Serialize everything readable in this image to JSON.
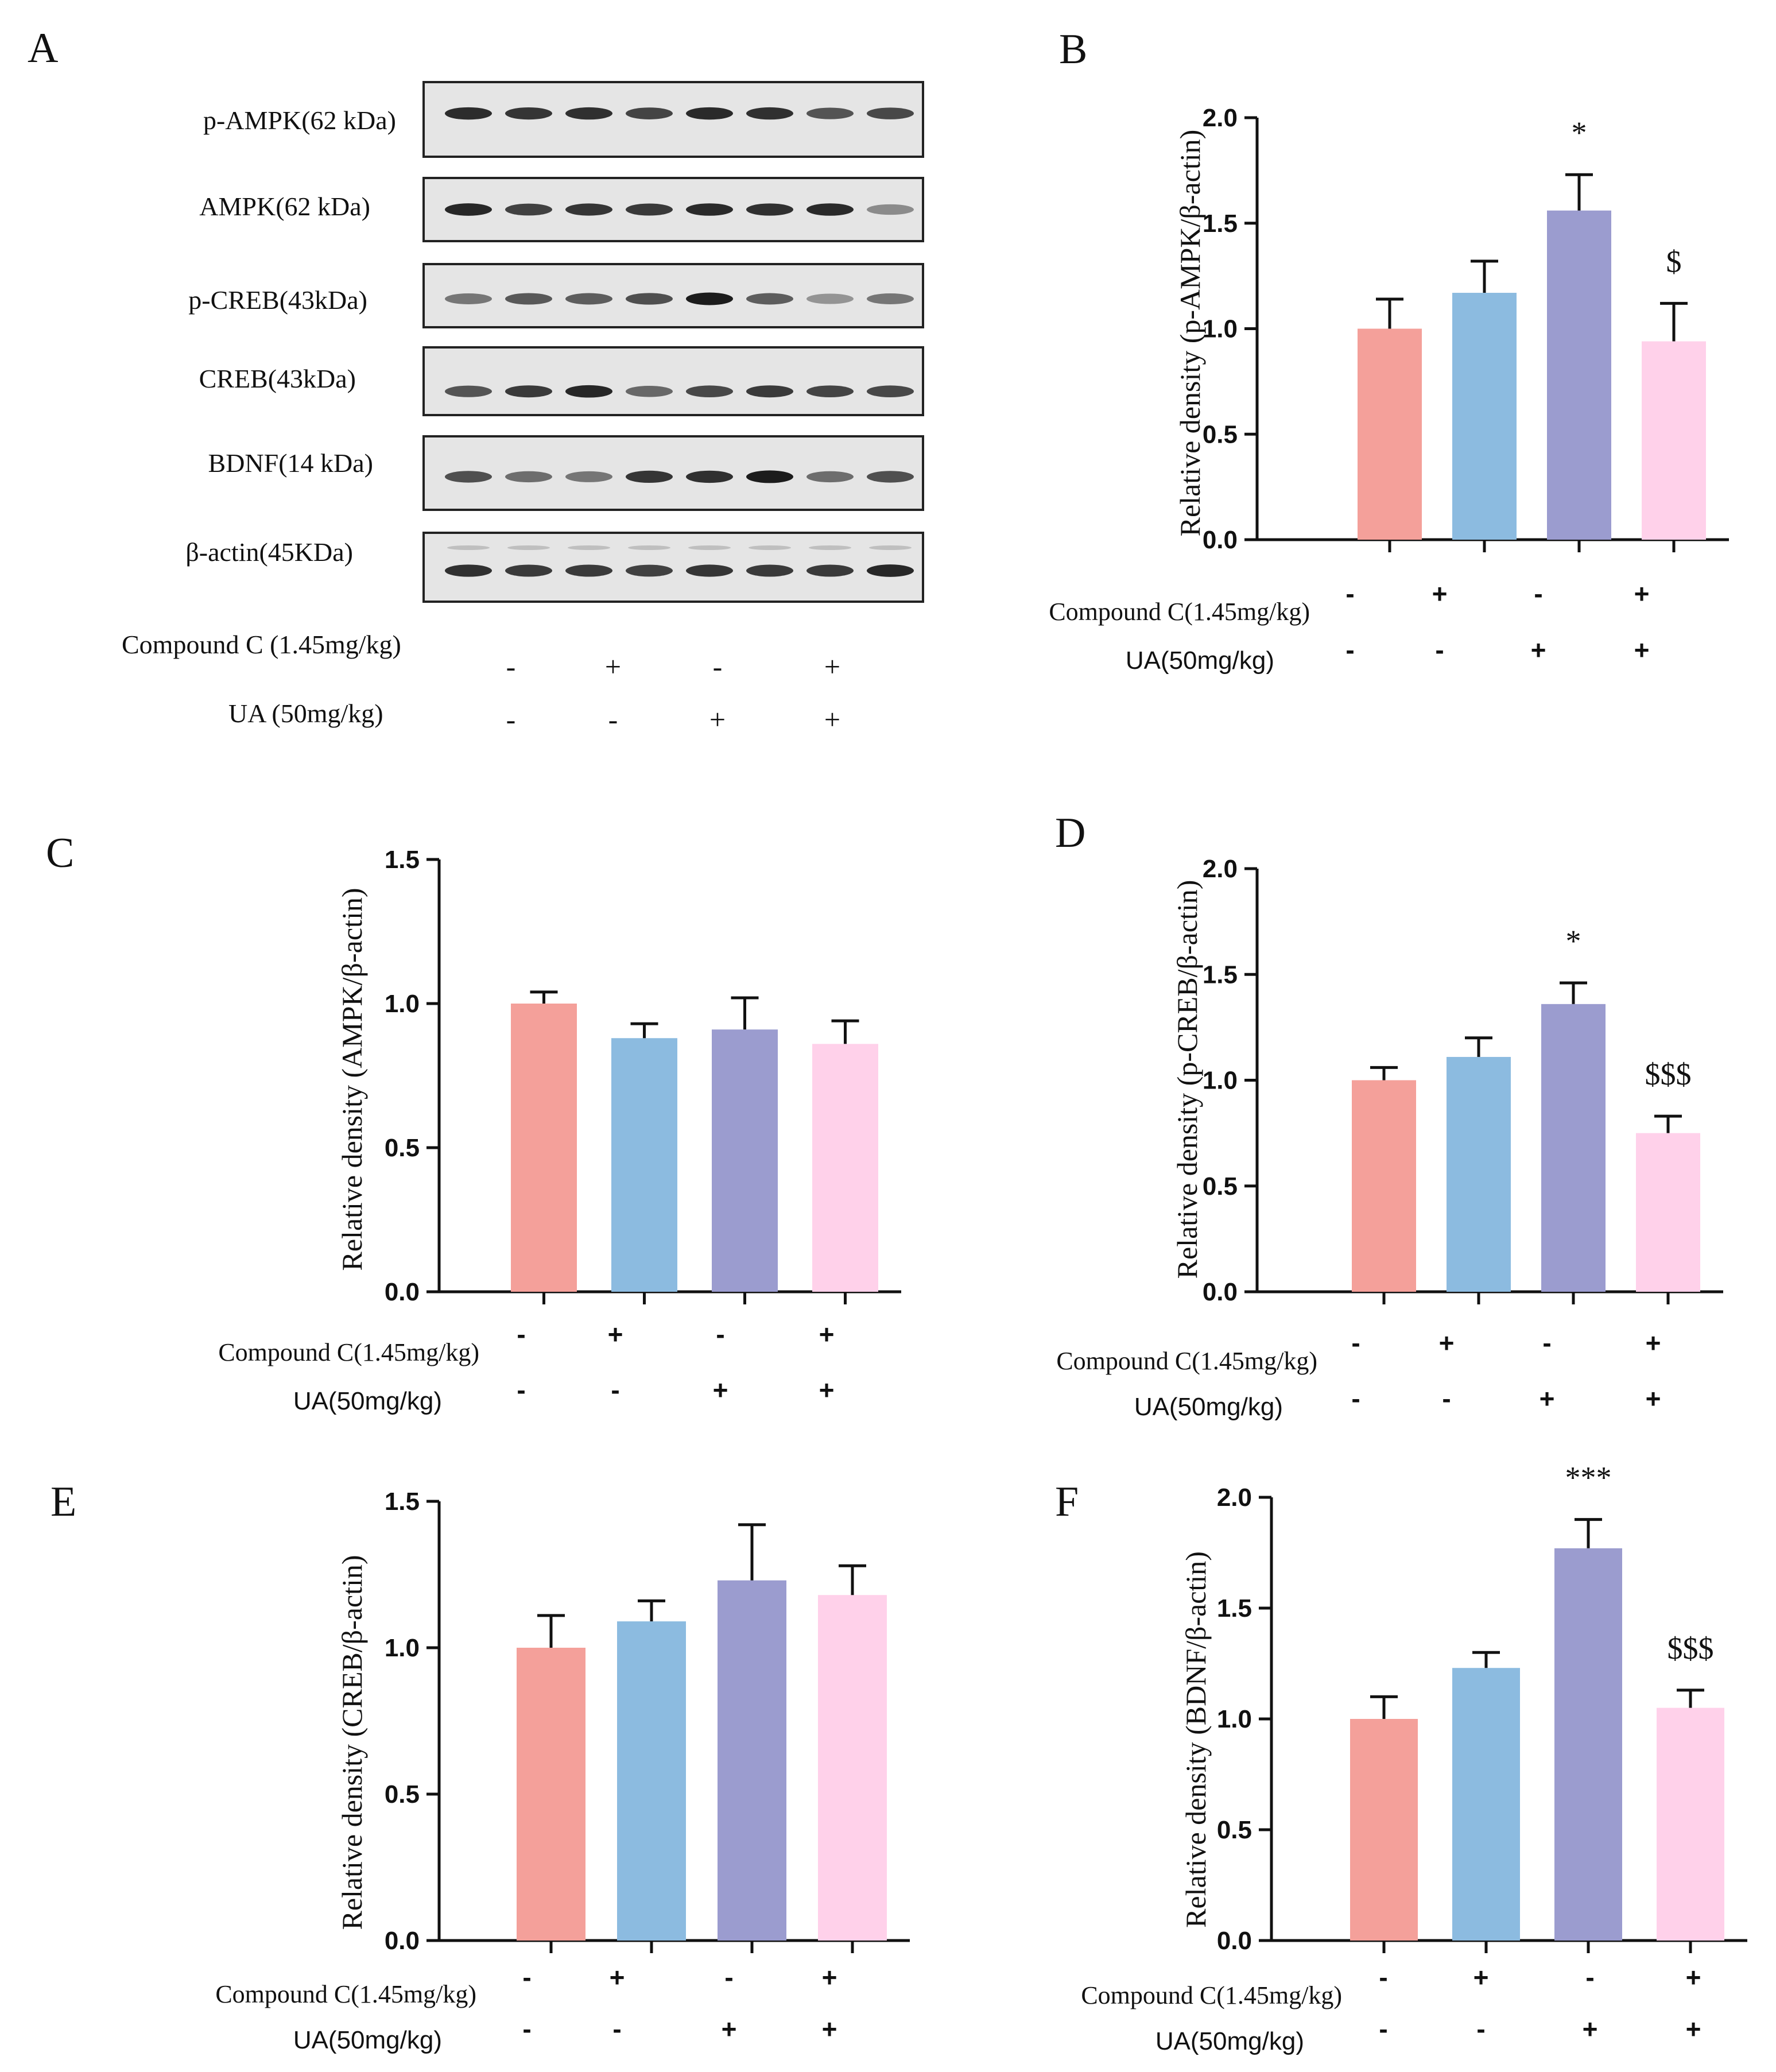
{
  "colors": {
    "bars": [
      "#f4a09a",
      "#8cbbe0",
      "#9b9ccf",
      "#ffd1ea"
    ],
    "axis": "#111111",
    "blot_bg": "#e5e5e5",
    "band": "#1c1c1c"
  },
  "blot": {
    "panel_letter": "A",
    "proteins": [
      "p-AMPK(62 kDa)",
      "AMPK(62 kDa)",
      "p-CREB(43kDa)",
      "CREB(43kDa)",
      "BDNF(14 kDa)",
      "β-actin(45KDa)"
    ],
    "band_intensity": [
      [
        0.92,
        0.88,
        0.9,
        0.8,
        0.93,
        0.9,
        0.72,
        0.78
      ],
      [
        0.95,
        0.82,
        0.88,
        0.86,
        0.93,
        0.9,
        0.93,
        0.45
      ],
      [
        0.55,
        0.7,
        0.68,
        0.75,
        1.0,
        0.68,
        0.4,
        0.55
      ],
      [
        0.72,
        0.85,
        0.95,
        0.62,
        0.78,
        0.85,
        0.8,
        0.78
      ],
      [
        0.75,
        0.6,
        0.55,
        0.88,
        0.9,
        1.0,
        0.6,
        0.75
      ],
      [
        0.9,
        0.85,
        0.85,
        0.82,
        0.88,
        0.85,
        0.85,
        0.95
      ]
    ],
    "condition_labels": [
      "Compound C (1.45mg/kg)",
      "UA (50mg/kg)"
    ],
    "condition_signs": [
      [
        "-",
        "+",
        "-",
        "+"
      ],
      [
        "-",
        "-",
        "+",
        "+"
      ]
    ]
  },
  "chart_data": [
    {
      "panel": "B",
      "type": "bar",
      "ylabel": "Relative density (p-AMPK/β-actin)",
      "ylim": [
        0,
        2.0
      ],
      "yticks": [
        "0.0",
        "0.5",
        "1.0",
        "1.5",
        "2.0"
      ],
      "values": [
        1.0,
        1.17,
        1.56,
        0.94
      ],
      "errors": [
        0.14,
        0.15,
        0.17,
        0.18
      ],
      "annotations": [
        "",
        "",
        "*",
        "$"
      ],
      "row_labels": [
        "Compound C(1.45mg/kg)",
        "UA(50mg/kg)"
      ],
      "signs": [
        [
          "-",
          "+",
          "-",
          "+"
        ],
        [
          "-",
          "-",
          "+",
          "+"
        ]
      ]
    },
    {
      "panel": "C",
      "type": "bar",
      "ylabel": "Relative density (AMPK/β-actin)",
      "ylim": [
        0,
        1.5
      ],
      "yticks": [
        "0.0",
        "0.5",
        "1.0",
        "1.5"
      ],
      "values": [
        1.0,
        0.88,
        0.91,
        0.86
      ],
      "errors": [
        0.04,
        0.05,
        0.11,
        0.08
      ],
      "annotations": [
        "",
        "",
        "",
        ""
      ],
      "row_labels": [
        "Compound C(1.45mg/kg)",
        "UA(50mg/kg)"
      ],
      "signs": [
        [
          "-",
          "+",
          "-",
          "+"
        ],
        [
          "-",
          "-",
          "+",
          "+"
        ]
      ]
    },
    {
      "panel": "D",
      "type": "bar",
      "ylabel": "Relative density (p-CREB/β-actin)",
      "ylim": [
        0,
        2.0
      ],
      "yticks": [
        "0.0",
        "0.5",
        "1.0",
        "1.5",
        "2.0"
      ],
      "values": [
        1.0,
        1.11,
        1.36,
        0.75
      ],
      "errors": [
        0.06,
        0.09,
        0.1,
        0.08
      ],
      "annotations": [
        "",
        "",
        "*",
        "$$$"
      ],
      "row_labels": [
        "Compound C(1.45mg/kg)",
        "UA(50mg/kg)"
      ],
      "signs": [
        [
          "-",
          "+",
          "-",
          "+"
        ],
        [
          "-",
          "-",
          "+",
          "+"
        ]
      ]
    },
    {
      "panel": "E",
      "type": "bar",
      "ylabel": "Relative density (CREB/β-actin)",
      "ylim": [
        0,
        1.5
      ],
      "yticks": [
        "0.0",
        "0.5",
        "1.0",
        "1.5"
      ],
      "values": [
        1.0,
        1.09,
        1.23,
        1.18
      ],
      "errors": [
        0.11,
        0.07,
        0.19,
        0.1
      ],
      "annotations": [
        "",
        "",
        "",
        ""
      ],
      "row_labels": [
        "Compound C(1.45mg/kg)",
        "UA(50mg/kg)"
      ],
      "signs": [
        [
          "-",
          "+",
          "-",
          "+"
        ],
        [
          "-",
          "-",
          "+",
          "+"
        ]
      ]
    },
    {
      "panel": "F",
      "type": "bar",
      "ylabel": "Relative density (BDNF/β-actin)",
      "ylim": [
        0,
        2.0
      ],
      "yticks": [
        "0.0",
        "0.5",
        "1.0",
        "1.5",
        "2.0"
      ],
      "values": [
        1.0,
        1.23,
        1.77,
        1.05
      ],
      "errors": [
        0.1,
        0.07,
        0.13,
        0.08
      ],
      "annotations": [
        "",
        "",
        "***",
        "$$$"
      ],
      "row_labels": [
        "Compound C(1.45mg/kg)",
        "UA(50mg/kg)"
      ],
      "signs": [
        [
          "-",
          "+",
          "-",
          "+"
        ],
        [
          "-",
          "-",
          "+",
          "+"
        ]
      ]
    }
  ]
}
